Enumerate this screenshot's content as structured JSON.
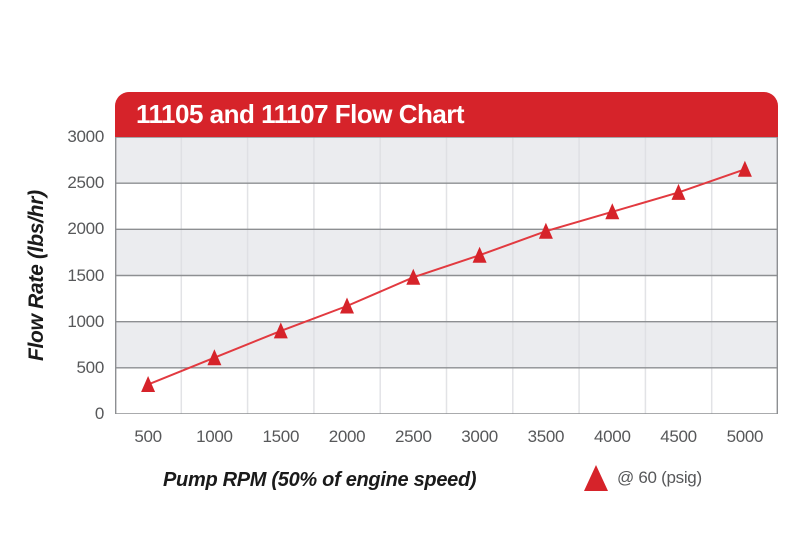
{
  "chart_data": {
    "type": "line",
    "title": "11105 and 11107 Flow Chart",
    "xlabel": "Pump RPM (50% of engine speed)",
    "ylabel": "Flow Rate (lbs/hr)",
    "categories": [
      500,
      1000,
      1500,
      2000,
      2500,
      3000,
      3500,
      4000,
      4500,
      5000
    ],
    "values": [
      320,
      610,
      900,
      1170,
      1480,
      1720,
      1980,
      2190,
      2400,
      2650
    ],
    "yticks": [
      0,
      500,
      1000,
      1500,
      2000,
      2500,
      3000
    ],
    "ylim": [
      0,
      3000
    ],
    "xlim_categories": "category axis, points centered in 10 equal columns",
    "grid": "horizontal gridlines every 500 with alternating gray/white bands, faint vertical column separators",
    "legend": {
      "position": "bottom-right",
      "marker": "triangle-up",
      "label": "@ 60 (psig)"
    },
    "colors": {
      "banner": "#D6232A",
      "title_text": "#FFFFFF",
      "line": "#E23A40",
      "marker": "#D6232A",
      "band_gray": "#EBECEF",
      "band_white": "#FFFFFF",
      "h_gridline": "#8D8F92",
      "v_gridline": "#DDDEE2",
      "tick_text": "#57585A",
      "axis_title_text": "#1A1A1A"
    }
  }
}
